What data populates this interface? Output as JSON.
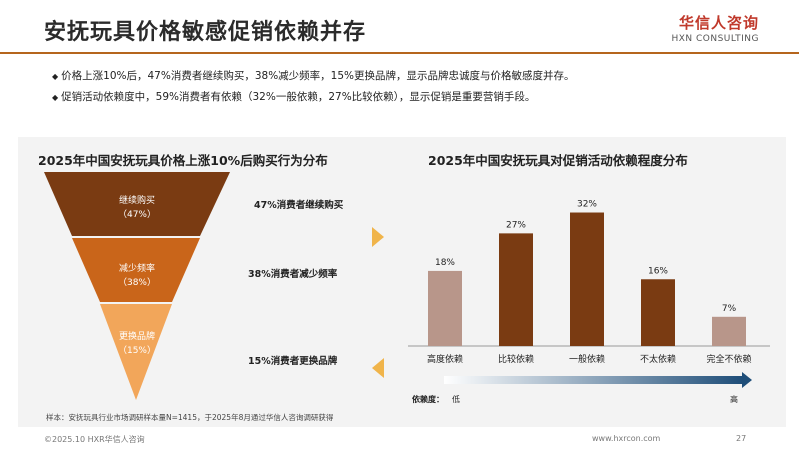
{
  "header": {
    "title": "安抚玩具价格敏感促销依赖并存",
    "logo_cn": "华信人咨询",
    "logo_en": "HXN CONSULTING"
  },
  "bullets": [
    "价格上涨10%后，47%消费者继续购买，38%减少频率，15%更换品牌，显示品牌忠诚度与价格敏感度并存。",
    "促销活动依赖度中，59%消费者有依赖（32%一般依赖，27%比较依赖），显示促销是重要营销手段。"
  ],
  "bullet_mark": "◆",
  "colors": {
    "accent": "#b5651d",
    "funnel_top": "#7a3b12",
    "funnel_mid": "#c9651a",
    "funnel_bottom": "#f2a65a",
    "bar_dark": "#7a3b12",
    "bar_light": "#b8968a",
    "arrow": "#f0b44a",
    "gradient_start": "#ffffff",
    "gradient_end": "#1f4e79"
  },
  "chart_data": [
    {
      "type": "funnel",
      "title": "2025年中国安抚玩具价格上涨10%后购买行为分布",
      "stages": [
        {
          "label": "继续购买",
          "value": 47,
          "value_label": "（47%）",
          "description": "47%消费者继续购买"
        },
        {
          "label": "减少频率",
          "value": 38,
          "value_label": "（38%）",
          "description": "38%消费者减少频率"
        },
        {
          "label": "更换品牌",
          "value": 15,
          "value_label": "（15%）",
          "description": "15%消费者更换品牌"
        }
      ]
    },
    {
      "type": "bar",
      "title": "2025年中国安抚玩具对促销活动依赖程度分布",
      "categories": [
        "高度依赖",
        "比较依赖",
        "一般依赖",
        "不太依赖",
        "完全不依赖"
      ],
      "values": [
        18,
        27,
        32,
        16,
        7
      ],
      "value_labels": [
        "18%",
        "27%",
        "32%",
        "16%",
        "7%"
      ],
      "ylim": [
        0,
        35
      ],
      "scale": {
        "label": "依赖度：",
        "low": "低",
        "high": "高"
      }
    }
  ],
  "sample_note": "样本：安抚玩具行业市场调研样本量N=1415，于2025年8月通过华信人咨询调研获得",
  "footer": {
    "copyright": "©2025.10 HXR华信人咨询",
    "url": "www.hxrcon.com",
    "page": "27"
  }
}
